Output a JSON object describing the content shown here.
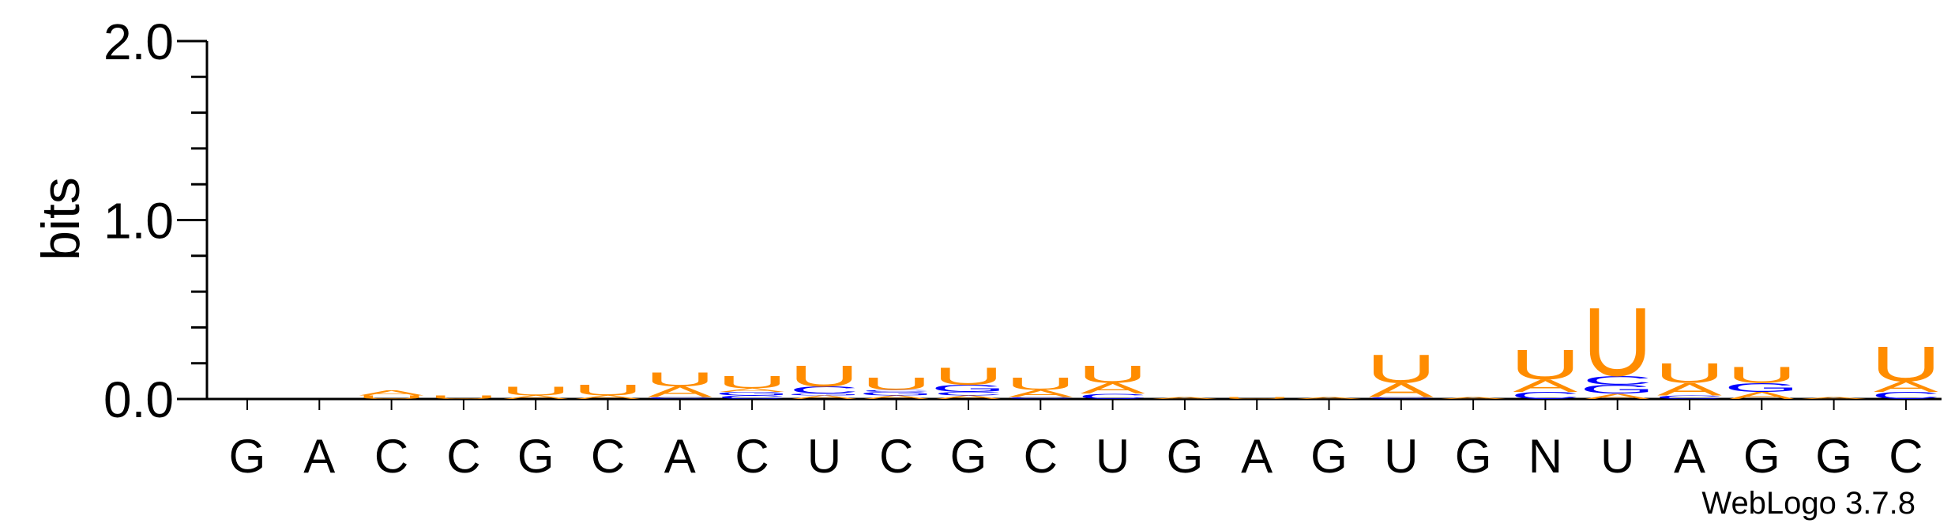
{
  "chart_data": {
    "type": "sequence-logo",
    "ylabel": "bits",
    "ylim": [
      0,
      2.0
    ],
    "yticks": [
      "0.0",
      "1.0",
      "2.0"
    ],
    "colors": {
      "A": "#ff8c00",
      "U": "#ff8c00",
      "G": "#0000ff",
      "C": "#0000ff"
    },
    "positions": [
      {
        "label": "G",
        "stack": []
      },
      {
        "label": "A",
        "stack": []
      },
      {
        "label": "C",
        "stack": [
          {
            "letter": "U",
            "bits": 0.02
          },
          {
            "letter": "A",
            "bits": 0.03
          }
        ]
      },
      {
        "label": "C",
        "stack": [
          {
            "letter": "U",
            "bits": 0.02
          }
        ]
      },
      {
        "label": "G",
        "stack": [
          {
            "letter": "A",
            "bits": 0.02
          },
          {
            "letter": "U",
            "bits": 0.05
          }
        ]
      },
      {
        "label": "C",
        "stack": [
          {
            "letter": "A",
            "bits": 0.02
          },
          {
            "letter": "U",
            "bits": 0.06
          }
        ]
      },
      {
        "label": "A",
        "stack": [
          {
            "letter": "C",
            "bits": 0.01
          },
          {
            "letter": "A",
            "bits": 0.06
          },
          {
            "letter": "U",
            "bits": 0.08
          }
        ]
      },
      {
        "label": "C",
        "stack": [
          {
            "letter": "C",
            "bits": 0.02
          },
          {
            "letter": "G",
            "bits": 0.02
          },
          {
            "letter": "A",
            "bits": 0.02
          },
          {
            "letter": "U",
            "bits": 0.07
          }
        ]
      },
      {
        "label": "U",
        "stack": [
          {
            "letter": "A",
            "bits": 0.02
          },
          {
            "letter": "G",
            "bits": 0.01
          },
          {
            "letter": "C",
            "bits": 0.04
          },
          {
            "letter": "U",
            "bits": 0.12
          }
        ]
      },
      {
        "label": "C",
        "stack": [
          {
            "letter": "A",
            "bits": 0.02
          },
          {
            "letter": "G",
            "bits": 0.02
          },
          {
            "letter": "C",
            "bits": 0.01
          },
          {
            "letter": "U",
            "bits": 0.07
          }
        ]
      },
      {
        "label": "G",
        "stack": [
          {
            "letter": "A",
            "bits": 0.02
          },
          {
            "letter": "C",
            "bits": 0.02
          },
          {
            "letter": "G",
            "bits": 0.04
          },
          {
            "letter": "U",
            "bits": 0.1
          }
        ]
      },
      {
        "label": "C",
        "stack": [
          {
            "letter": "C",
            "bits": 0.01
          },
          {
            "letter": "A",
            "bits": 0.04
          },
          {
            "letter": "U",
            "bits": 0.07
          }
        ]
      },
      {
        "label": "U",
        "stack": [
          {
            "letter": "C",
            "bits": 0.03
          },
          {
            "letter": "A",
            "bits": 0.06
          },
          {
            "letter": "U",
            "bits": 0.1
          }
        ]
      },
      {
        "label": "G",
        "stack": [
          {
            "letter": "A",
            "bits": 0.01
          }
        ]
      },
      {
        "label": "A",
        "stack": [
          {
            "letter": "U",
            "bits": 0.01
          }
        ]
      },
      {
        "label": "G",
        "stack": [
          {
            "letter": "A",
            "bits": 0.01
          }
        ]
      },
      {
        "label": "U",
        "stack": [
          {
            "letter": "C",
            "bits": 0.01
          },
          {
            "letter": "A",
            "bits": 0.08
          },
          {
            "letter": "U",
            "bits": 0.16
          }
        ]
      },
      {
        "label": "G",
        "stack": [
          {
            "letter": "A",
            "bits": 0.01
          }
        ]
      },
      {
        "label": "N",
        "stack": [
          {
            "letter": "C",
            "bits": 0.04
          },
          {
            "letter": "A",
            "bits": 0.07
          },
          {
            "letter": "U",
            "bits": 0.17
          }
        ]
      },
      {
        "label": "U",
        "stack": [
          {
            "letter": "A",
            "bits": 0.03
          },
          {
            "letter": "G",
            "bits": 0.05
          },
          {
            "letter": "C",
            "bits": 0.05
          },
          {
            "letter": "U",
            "bits": 0.39
          }
        ]
      },
      {
        "label": "A",
        "stack": [
          {
            "letter": "C",
            "bits": 0.02
          },
          {
            "letter": "A",
            "bits": 0.07
          },
          {
            "letter": "U",
            "bits": 0.11
          }
        ]
      },
      {
        "label": "G",
        "stack": [
          {
            "letter": "A",
            "bits": 0.04
          },
          {
            "letter": "G",
            "bits": 0.05
          },
          {
            "letter": "U",
            "bits": 0.09
          }
        ]
      },
      {
        "label": "G",
        "stack": [
          {
            "letter": "A",
            "bits": 0.01
          }
        ]
      },
      {
        "label": "C",
        "stack": [
          {
            "letter": "C",
            "bits": 0.04
          },
          {
            "letter": "A",
            "bits": 0.06
          },
          {
            "letter": "U",
            "bits": 0.2
          }
        ]
      }
    ]
  },
  "footer": {
    "credit": "WebLogo 3.7.8"
  }
}
